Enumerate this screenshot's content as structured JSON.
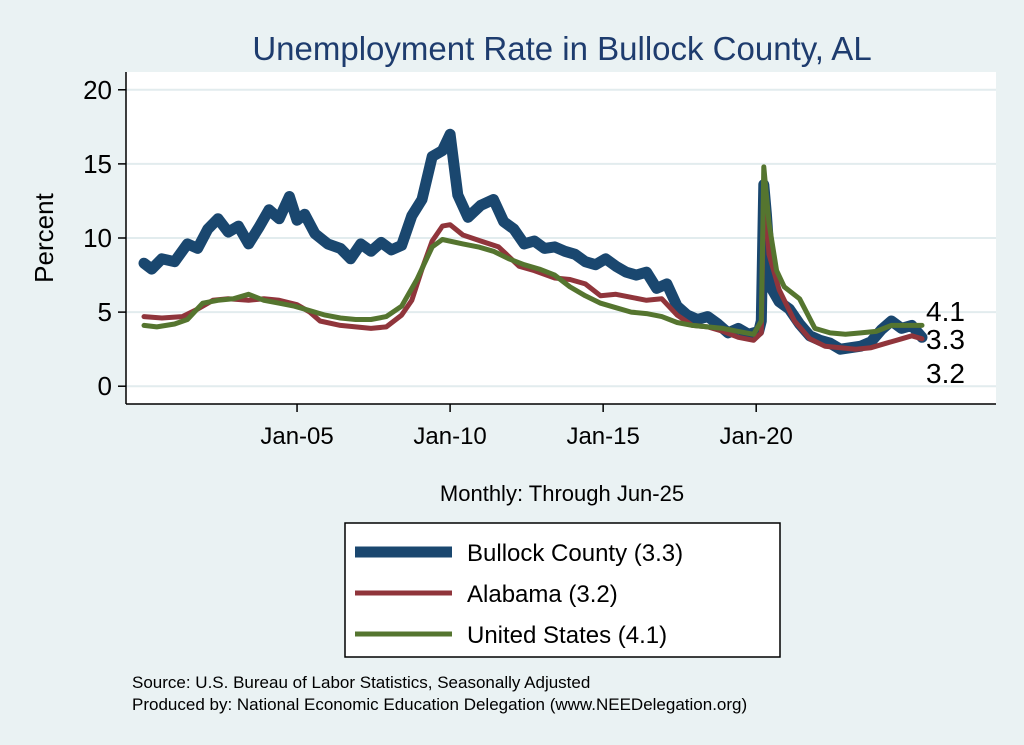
{
  "chart_data": {
    "type": "line",
    "title": "Unemployment Rate in Bullock  County, AL",
    "xlabel": "Monthly: Through Jun-25",
    "ylabel": "Percent",
    "x_range": [
      "2000-01",
      "2025-06"
    ],
    "x_ticks": [
      {
        "date": "2005-01",
        "label": "Jan-05"
      },
      {
        "date": "2010-01",
        "label": "Jan-10"
      },
      {
        "date": "2015-01",
        "label": "Jan-15"
      },
      {
        "date": "2020-01",
        "label": "Jan-20"
      }
    ],
    "ylim": [
      -1.2,
      21.2
    ],
    "y_ticks": [
      0,
      5,
      10,
      15,
      20
    ],
    "grid": true,
    "legend_position": "bottom",
    "series": [
      {
        "name": "Bullock  County (3.3)",
        "end_label": "3.3",
        "color": "#1a476f",
        "points": [
          [
            "2000-01",
            8.3
          ],
          [
            "2000-04",
            7.9
          ],
          [
            "2000-08",
            8.6
          ],
          [
            "2001-01",
            8.4
          ],
          [
            "2001-06",
            9.6
          ],
          [
            "2001-10",
            9.3
          ],
          [
            "2002-02",
            10.6
          ],
          [
            "2002-06",
            11.3
          ],
          [
            "2002-10",
            10.4
          ],
          [
            "2003-02",
            10.8
          ],
          [
            "2003-06",
            9.6
          ],
          [
            "2003-10",
            10.7
          ],
          [
            "2004-02",
            11.9
          ],
          [
            "2004-06",
            11.3
          ],
          [
            "2004-10",
            12.8
          ],
          [
            "2005-01",
            11.2
          ],
          [
            "2005-04",
            11.6
          ],
          [
            "2005-08",
            10.3
          ],
          [
            "2006-01",
            9.6
          ],
          [
            "2006-06",
            9.3
          ],
          [
            "2006-10",
            8.6
          ],
          [
            "2007-02",
            9.6
          ],
          [
            "2007-06",
            9.1
          ],
          [
            "2007-10",
            9.7
          ],
          [
            "2008-02",
            9.2
          ],
          [
            "2008-06",
            9.5
          ],
          [
            "2008-10",
            11.5
          ],
          [
            "2009-02",
            12.6
          ],
          [
            "2009-06",
            15.5
          ],
          [
            "2009-10",
            15.9
          ],
          [
            "2010-01",
            17.0
          ],
          [
            "2010-04",
            12.9
          ],
          [
            "2010-08",
            11.4
          ],
          [
            "2011-01",
            12.2
          ],
          [
            "2011-06",
            12.6
          ],
          [
            "2011-10",
            11.1
          ],
          [
            "2012-02",
            10.6
          ],
          [
            "2012-06",
            9.6
          ],
          [
            "2012-10",
            9.8
          ],
          [
            "2013-02",
            9.3
          ],
          [
            "2013-06",
            9.4
          ],
          [
            "2013-10",
            9.1
          ],
          [
            "2014-02",
            8.9
          ],
          [
            "2014-06",
            8.4
          ],
          [
            "2014-10",
            8.2
          ],
          [
            "2015-02",
            8.6
          ],
          [
            "2015-06",
            8.1
          ],
          [
            "2015-10",
            7.7
          ],
          [
            "2016-02",
            7.5
          ],
          [
            "2016-06",
            7.7
          ],
          [
            "2016-10",
            6.6
          ],
          [
            "2017-02",
            6.9
          ],
          [
            "2017-06",
            5.4
          ],
          [
            "2017-10",
            4.8
          ],
          [
            "2018-02",
            4.5
          ],
          [
            "2018-06",
            4.7
          ],
          [
            "2018-10",
            4.2
          ],
          [
            "2019-02",
            3.6
          ],
          [
            "2019-06",
            3.9
          ],
          [
            "2019-10",
            3.5
          ],
          [
            "2020-02",
            3.7
          ],
          [
            "2020-03",
            4.4
          ],
          [
            "2020-04",
            13.6
          ],
          [
            "2020-05",
            11.6
          ],
          [
            "2020-07",
            6.6
          ],
          [
            "2020-10",
            5.7
          ],
          [
            "2021-02",
            5.2
          ],
          [
            "2021-06",
            4.2
          ],
          [
            "2021-10",
            3.4
          ],
          [
            "2022-02",
            3.1
          ],
          [
            "2022-06",
            2.9
          ],
          [
            "2022-10",
            2.5
          ],
          [
            "2023-02",
            2.6
          ],
          [
            "2023-06",
            2.7
          ],
          [
            "2023-10",
            3.0
          ],
          [
            "2024-02",
            3.8
          ],
          [
            "2024-06",
            4.4
          ],
          [
            "2024-10",
            3.9
          ],
          [
            "2025-02",
            4.1
          ],
          [
            "2025-06",
            3.3
          ]
        ]
      },
      {
        "name": "Alabama (3.2)",
        "end_label": "3.2",
        "color": "#90353b",
        "points": [
          [
            "2000-01",
            4.7
          ],
          [
            "2000-08",
            4.6
          ],
          [
            "2001-04",
            4.7
          ],
          [
            "2001-10",
            5.2
          ],
          [
            "2002-04",
            5.8
          ],
          [
            "2002-10",
            5.9
          ],
          [
            "2003-06",
            5.8
          ],
          [
            "2003-12",
            5.9
          ],
          [
            "2004-06",
            5.8
          ],
          [
            "2005-01",
            5.5
          ],
          [
            "2005-06",
            5.0
          ],
          [
            "2005-10",
            4.4
          ],
          [
            "2006-06",
            4.1
          ],
          [
            "2006-12",
            4.0
          ],
          [
            "2007-06",
            3.9
          ],
          [
            "2007-12",
            4.0
          ],
          [
            "2008-06",
            4.8
          ],
          [
            "2008-10",
            5.8
          ],
          [
            "2009-02",
            7.9
          ],
          [
            "2009-06",
            9.8
          ],
          [
            "2009-10",
            10.8
          ],
          [
            "2010-01",
            10.9
          ],
          [
            "2010-06",
            10.2
          ],
          [
            "2011-01",
            9.8
          ],
          [
            "2011-08",
            9.4
          ],
          [
            "2012-04",
            8.1
          ],
          [
            "2012-10",
            7.8
          ],
          [
            "2013-06",
            7.3
          ],
          [
            "2013-12",
            7.2
          ],
          [
            "2014-06",
            6.9
          ],
          [
            "2014-12",
            6.1
          ],
          [
            "2015-06",
            6.2
          ],
          [
            "2015-12",
            6.0
          ],
          [
            "2016-06",
            5.8
          ],
          [
            "2016-12",
            5.9
          ],
          [
            "2017-06",
            4.8
          ],
          [
            "2017-12",
            4.1
          ],
          [
            "2018-06",
            4.0
          ],
          [
            "2018-12",
            3.7
          ],
          [
            "2019-06",
            3.3
          ],
          [
            "2019-12",
            3.1
          ],
          [
            "2020-03",
            3.6
          ],
          [
            "2020-04",
            13.8
          ],
          [
            "2020-06",
            8.9
          ],
          [
            "2020-10",
            6.5
          ],
          [
            "2021-04",
            4.4
          ],
          [
            "2021-10",
            3.2
          ],
          [
            "2022-04",
            2.7
          ],
          [
            "2022-10",
            2.6
          ],
          [
            "2023-04",
            2.5
          ],
          [
            "2023-10",
            2.6
          ],
          [
            "2024-04",
            2.9
          ],
          [
            "2024-10",
            3.2
          ],
          [
            "2025-02",
            3.4
          ],
          [
            "2025-06",
            3.2
          ]
        ]
      },
      {
        "name": "United States (4.1)",
        "end_label": "4.1",
        "color": "#55752f",
        "points": [
          [
            "2000-01",
            4.1
          ],
          [
            "2000-06",
            4.0
          ],
          [
            "2001-01",
            4.2
          ],
          [
            "2001-06",
            4.5
          ],
          [
            "2001-12",
            5.6
          ],
          [
            "2002-06",
            5.8
          ],
          [
            "2002-12",
            5.9
          ],
          [
            "2003-06",
            6.2
          ],
          [
            "2003-12",
            5.8
          ],
          [
            "2004-06",
            5.6
          ],
          [
            "2004-12",
            5.4
          ],
          [
            "2005-06",
            5.1
          ],
          [
            "2005-12",
            4.8
          ],
          [
            "2006-06",
            4.6
          ],
          [
            "2006-12",
            4.5
          ],
          [
            "2007-06",
            4.5
          ],
          [
            "2007-12",
            4.7
          ],
          [
            "2008-06",
            5.4
          ],
          [
            "2008-12",
            7.2
          ],
          [
            "2009-06",
            9.4
          ],
          [
            "2009-10",
            9.9
          ],
          [
            "2010-06",
            9.6
          ],
          [
            "2010-12",
            9.4
          ],
          [
            "2011-06",
            9.1
          ],
          [
            "2011-12",
            8.6
          ],
          [
            "2012-06",
            8.2
          ],
          [
            "2012-12",
            7.9
          ],
          [
            "2013-06",
            7.5
          ],
          [
            "2013-12",
            6.7
          ],
          [
            "2014-06",
            6.1
          ],
          [
            "2014-12",
            5.6
          ],
          [
            "2015-06",
            5.3
          ],
          [
            "2015-12",
            5.0
          ],
          [
            "2016-06",
            4.9
          ],
          [
            "2016-12",
            4.7
          ],
          [
            "2017-06",
            4.3
          ],
          [
            "2017-12",
            4.1
          ],
          [
            "2018-06",
            4.0
          ],
          [
            "2018-12",
            3.9
          ],
          [
            "2019-06",
            3.7
          ],
          [
            "2019-12",
            3.5
          ],
          [
            "2020-03",
            4.4
          ],
          [
            "2020-04",
            14.8
          ],
          [
            "2020-06",
            11.0
          ],
          [
            "2020-09",
            7.8
          ],
          [
            "2020-12",
            6.7
          ],
          [
            "2021-06",
            5.9
          ],
          [
            "2021-12",
            3.9
          ],
          [
            "2022-06",
            3.6
          ],
          [
            "2022-12",
            3.5
          ],
          [
            "2023-06",
            3.6
          ],
          [
            "2023-12",
            3.7
          ],
          [
            "2024-06",
            4.1
          ],
          [
            "2024-12",
            4.1
          ],
          [
            "2025-06",
            4.1
          ]
        ]
      }
    ],
    "annotations": [
      "4.1",
      "3.3",
      "3.2"
    ]
  },
  "source_note": "Source: U.S. Bureau of Labor Statistics, Seasonally Adjusted",
  "producer_note": "Produced by: National Economic Education Delegation (www.NEEDelegation.org)"
}
